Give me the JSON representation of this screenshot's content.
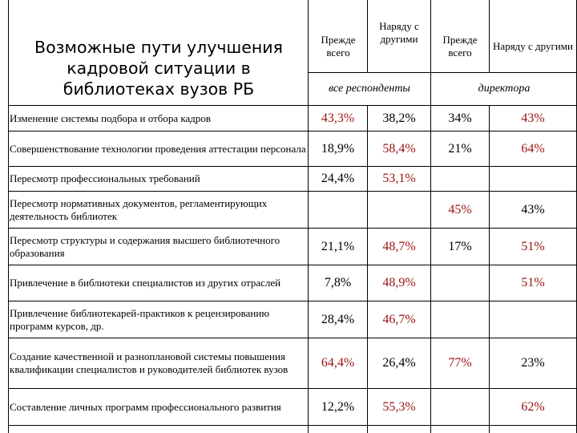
{
  "title": "Возможные пути улучшения кадровой ситуации в библиотеках вузов РБ",
  "headers": {
    "col1": "Прежде всего",
    "col2": "Наряду с другими",
    "col3": "Прежде всего",
    "col4": "Наряду с другими",
    "group_all": "все респонденты",
    "group_directors": "директора"
  },
  "rows": [
    {
      "label": "Изменение системы подбора и отбора кадров",
      "v1": "43,3%",
      "v2": "38,2%",
      "v3": "34%",
      "v4": "43%"
    },
    {
      "label": "Совершенствование технологии проведения аттестации персонала",
      "v1": "18,9%",
      "v2": "58,4%",
      "v3": "21%",
      "v4": "64%"
    },
    {
      "label": "Пересмотр профессиональных требований",
      "v1": "24,4%",
      "v2": "53,1%",
      "v3": "",
      "v4": ""
    },
    {
      "label": "Пересмотр нормативных документов, регламентирующих деятельность библиотек",
      "v1": "",
      "v2": "",
      "v3": "45%",
      "v4": "43%"
    },
    {
      "label": "Пересмотр структуры и содержания высшего библиотечного образования",
      "v1": "21,1%",
      "v2": "48,7%",
      "v3": "17%",
      "v4": "51%"
    },
    {
      "label": "Привлечение в библиотеки специалистов из других отраслей",
      "v1": "7,8%",
      "v2": "48,9%",
      "v3": "",
      "v4": "51%"
    },
    {
      "label": "Привлечение библиотекарей-практиков к рецензированию программ курсов, др.",
      "v1": "28,4%",
      "v2": "46,7%",
      "v3": "",
      "v4": ""
    },
    {
      "label": "Создание качественной и разноплановой системы повышения квалификации специалистов и руководителей библиотек вузов",
      "v1": "64,4%",
      "v2": "26,4%",
      "v3": "77%",
      "v4": "23%"
    },
    {
      "label": "Составление личных программ профессионального развития",
      "v1": "12,2%",
      "v2": "55,3%",
      "v3": "",
      "v4": "62%"
    }
  ],
  "colors": {
    "highlight": "#9b1111",
    "text": "#000000"
  }
}
